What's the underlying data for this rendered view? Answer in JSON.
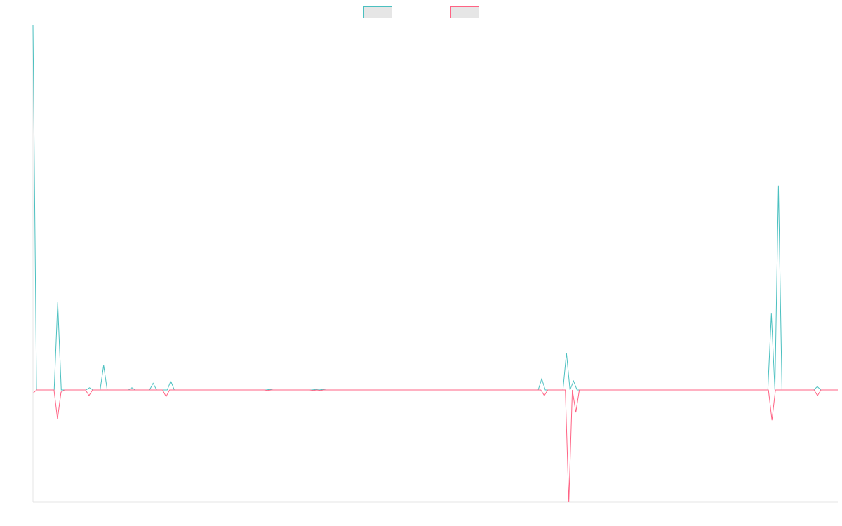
{
  "chart_data": {
    "type": "line",
    "title": "",
    "xlabel": "",
    "ylabel": "",
    "grid": false,
    "legend_position": "top-center",
    "ylim": [
      -1,
      3.25
    ],
    "series": [
      {
        "name": "",
        "color": "#4bc0c0",
        "values": [
          3.25,
          0,
          0,
          0,
          0,
          0,
          0,
          0.78,
          0,
          0,
          0,
          0,
          0,
          0,
          0,
          0,
          0.02,
          0,
          0,
          0,
          0.22,
          0,
          0,
          0,
          0,
          0,
          0,
          0,
          0.02,
          0,
          0,
          0,
          0,
          0,
          0.06,
          0,
          0,
          0,
          0,
          0.08,
          0,
          0,
          0,
          0,
          0,
          0,
          0,
          0,
          0,
          0,
          0,
          0,
          0,
          0,
          0,
          0,
          0,
          0,
          0,
          0,
          0,
          0,
          0,
          0,
          0,
          0,
          0,
          0.005,
          0,
          0,
          0,
          0,
          0,
          0,
          0,
          0,
          0,
          0,
          0,
          0,
          0.005,
          0,
          0.005,
          0,
          0,
          0,
          0,
          0,
          0,
          0,
          0,
          0,
          0,
          0,
          0,
          0,
          0,
          0,
          0,
          0,
          0,
          0,
          0,
          0,
          0,
          0,
          0,
          0,
          0,
          0,
          0,
          0,
          0,
          0,
          0,
          0,
          0,
          0,
          0,
          0,
          0,
          0,
          0,
          0,
          0,
          0,
          0,
          0,
          0,
          0,
          0,
          0,
          0,
          0,
          0,
          0,
          0,
          0,
          0,
          0,
          0,
          0,
          0,
          0,
          0.1,
          0,
          0,
          0,
          0,
          0,
          0,
          0.33,
          0,
          0.08,
          0,
          0,
          0,
          0,
          0,
          0,
          0,
          0,
          0,
          0,
          0,
          0,
          0,
          0,
          0,
          0,
          0,
          0,
          0,
          0,
          0,
          0,
          0,
          0,
          0,
          0,
          0,
          0,
          0,
          0,
          0,
          0,
          0,
          0,
          0,
          0,
          0,
          0,
          0,
          0,
          0,
          0,
          0,
          0,
          0,
          0,
          0,
          0,
          0,
          0,
          0,
          0,
          0,
          0,
          0,
          0.68,
          0,
          1.82,
          0,
          0,
          0,
          0,
          0,
          0,
          0,
          0,
          0,
          0,
          0.03,
          0,
          0,
          0,
          0,
          0,
          0
        ]
      },
      {
        "name": "",
        "color": "#ff6384",
        "values": [
          -0.03,
          0,
          0,
          0,
          0,
          0,
          0,
          -0.26,
          -0.02,
          0,
          0,
          0,
          0,
          0,
          0,
          0,
          -0.05,
          0,
          0,
          0,
          0,
          0,
          0,
          0,
          0,
          0,
          0,
          0,
          0,
          0,
          0,
          0,
          0,
          0,
          0,
          0,
          0,
          0,
          -0.06,
          0,
          0,
          0,
          0,
          0,
          0,
          0,
          0,
          0,
          0,
          0,
          0,
          0,
          0,
          0,
          0,
          0,
          0,
          0,
          0,
          0,
          0,
          0,
          0,
          0,
          0,
          0,
          0,
          -0.005,
          0,
          0,
          0,
          0,
          0,
          0,
          0,
          0,
          0,
          0,
          0,
          0,
          -0.005,
          0,
          -0.005,
          0,
          0,
          0,
          0,
          0,
          0,
          0,
          0,
          0,
          0,
          0,
          0,
          0,
          0,
          0,
          0,
          0,
          0,
          0,
          0,
          0,
          0,
          0,
          0,
          0,
          0,
          0,
          0,
          0,
          0,
          0,
          0,
          0,
          0,
          0,
          0,
          0,
          0,
          0,
          0,
          0,
          0,
          0,
          0,
          0,
          0,
          0,
          0,
          0,
          0,
          0,
          0,
          0,
          0,
          0,
          0,
          0,
          0,
          0,
          0,
          0,
          0,
          0,
          -0.05,
          0,
          0,
          0,
          0,
          0,
          0,
          -1,
          0,
          -0.2,
          0,
          0,
          0,
          0,
          0,
          0,
          0,
          0,
          0,
          0,
          0,
          0,
          0,
          0,
          0,
          0,
          0,
          0,
          0,
          0,
          0,
          0,
          0,
          0,
          0,
          0,
          0,
          0,
          0,
          0,
          0,
          0,
          0,
          0,
          0,
          0,
          0,
          0,
          0,
          0,
          0,
          0,
          0,
          0,
          0,
          0,
          0,
          0,
          0,
          0,
          0,
          0,
          0,
          0,
          0,
          -0.27,
          0,
          0,
          0,
          0,
          0,
          0,
          0,
          0,
          0,
          0,
          0,
          0,
          -0.05,
          0,
          0,
          0,
          0,
          0,
          0
        ]
      }
    ]
  }
}
